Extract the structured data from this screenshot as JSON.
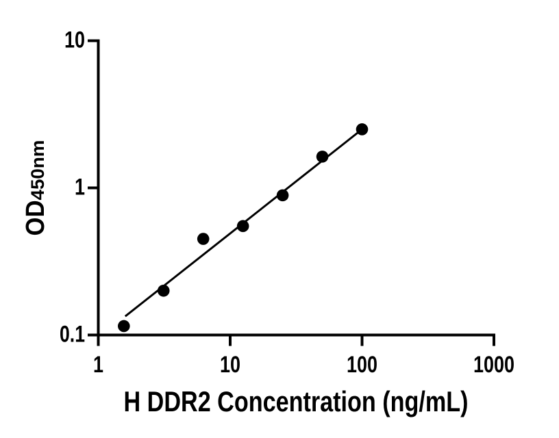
{
  "figure": {
    "background_color": "#ffffff",
    "axis_color": "#000000",
    "marker_color": "#000000",
    "trend_color": "#000000"
  },
  "chart_data": {
    "type": "scatter",
    "title": "",
    "xlabel": "H DDR2 Concentration (ng/mL)",
    "ylabel_main": "OD",
    "ylabel_sub": "450nm",
    "x_scale": "log10",
    "y_scale": "log10",
    "xlim": [
      1,
      1000
    ],
    "ylim": [
      0.1,
      10
    ],
    "grid": false,
    "legend": null,
    "x_ticks": [
      {
        "value": 1,
        "label": "1"
      },
      {
        "value": 10,
        "label": "10"
      },
      {
        "value": 100,
        "label": "100"
      },
      {
        "value": 1000,
        "label": "1000"
      }
    ],
    "y_ticks": [
      {
        "value": 0.1,
        "label": "0.1"
      },
      {
        "value": 1,
        "label": "1"
      },
      {
        "value": 10,
        "label": "10"
      }
    ],
    "points": [
      {
        "x": 1.5625,
        "y": 0.115
      },
      {
        "x": 3.125,
        "y": 0.2
      },
      {
        "x": 6.25,
        "y": 0.45
      },
      {
        "x": 12.5,
        "y": 0.55
      },
      {
        "x": 25,
        "y": 0.89
      },
      {
        "x": 50,
        "y": 1.63
      },
      {
        "x": 100,
        "y": 2.5
      }
    ],
    "trend_line": {
      "x1": 1.6,
      "y1": 0.134,
      "x2": 100,
      "y2": 2.5
    }
  }
}
